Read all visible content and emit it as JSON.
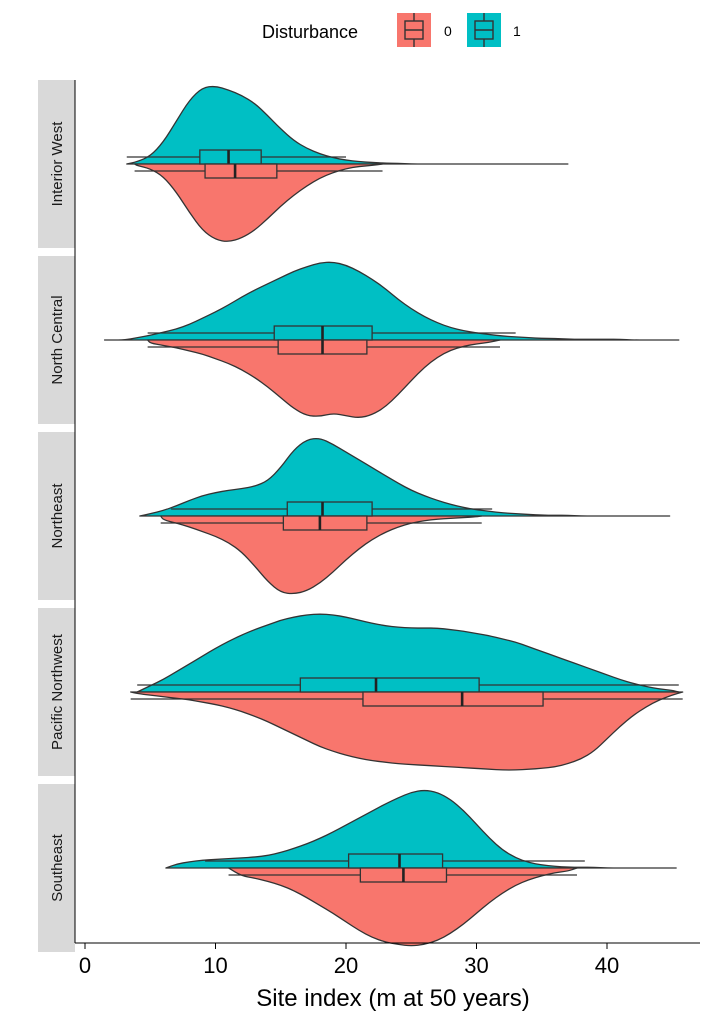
{
  "chart_data": {
    "type": "split-violin-boxplot",
    "xlabel": "Site index (m at 50 years)",
    "xlim": [
      -0.5,
      46
    ],
    "xticks": [
      0,
      10,
      20,
      30,
      40
    ],
    "legend": {
      "title": "Disturbance",
      "position": "top",
      "entries": [
        {
          "label": "0",
          "color": "#F8766D",
          "side": "bottom"
        },
        {
          "label": "1",
          "color": "#00BFC4",
          "side": "top"
        }
      ]
    },
    "density_grid": [
      3,
      4,
      5,
      6,
      7,
      8,
      9,
      10,
      11,
      12,
      13,
      14,
      15,
      16,
      17,
      18,
      19,
      20,
      21,
      22,
      23,
      24,
      25,
      26,
      27,
      28,
      29,
      30,
      31,
      32,
      33,
      34,
      35,
      36,
      37,
      38,
      39,
      40,
      41,
      42,
      43,
      44,
      45,
      46
    ],
    "panels": [
      {
        "region": "Interior West",
        "groups": {
          "1": {
            "min": 3.2,
            "q1": 8.8,
            "median": 11.0,
            "q3": 13.5,
            "max": 37.0,
            "whisker_low": 3.2,
            "whisker_high": 20.0,
            "density": [
              0.01,
              0.03,
              0.1,
              0.28,
              0.55,
              0.82,
              0.98,
              1.0,
              0.95,
              0.88,
              0.78,
              0.62,
              0.45,
              0.3,
              0.2,
              0.13,
              0.08,
              0.05,
              0.03,
              0.02,
              0.01,
              0.01,
              0,
              0,
              0,
              0,
              0,
              0,
              0,
              0,
              0,
              0,
              0,
              0,
              0,
              0,
              0,
              0,
              0,
              0,
              0,
              0,
              0,
              0
            ]
          },
          "0": {
            "min": 3.8,
            "q1": 9.2,
            "median": 11.5,
            "q3": 14.7,
            "max": 22.8,
            "whisker_low": 3.8,
            "whisker_high": 22.8,
            "density": [
              0.01,
              0.02,
              0.06,
              0.16,
              0.36,
              0.62,
              0.85,
              0.97,
              1.0,
              0.95,
              0.85,
              0.7,
              0.54,
              0.4,
              0.28,
              0.18,
              0.11,
              0.06,
              0.03,
              0.02,
              0.01,
              0,
              0,
              0,
              0,
              0,
              0,
              0,
              0,
              0,
              0,
              0,
              0,
              0,
              0,
              0,
              0,
              0,
              0,
              0,
              0,
              0,
              0,
              0
            ]
          }
        }
      },
      {
        "region": "North Central",
        "groups": {
          "1": {
            "min": 1.5,
            "q1": 14.5,
            "median": 18.2,
            "q3": 22.0,
            "max": 45.5,
            "whisker_low": 4.8,
            "whisker_high": 33.0,
            "density": [
              0,
              0.03,
              0.06,
              0.1,
              0.14,
              0.2,
              0.28,
              0.36,
              0.45,
              0.55,
              0.64,
              0.72,
              0.8,
              0.88,
              0.94,
              0.99,
              1.0,
              0.96,
              0.88,
              0.78,
              0.66,
              0.52,
              0.4,
              0.3,
              0.22,
              0.16,
              0.12,
              0.09,
              0.07,
              0.05,
              0.04,
              0.03,
              0.02,
              0.02,
              0.01,
              0.01,
              0.01,
              0.01,
              0.01,
              0,
              0,
              0,
              0,
              0
            ]
          },
          "0": {
            "min": 4.8,
            "q1": 14.8,
            "median": 18.2,
            "q3": 21.6,
            "max": 31.8,
            "whisker_low": 4.8,
            "whisker_high": 31.8,
            "density": [
              0,
              0.02,
              0.04,
              0.07,
              0.1,
              0.14,
              0.18,
              0.24,
              0.3,
              0.38,
              0.48,
              0.6,
              0.74,
              0.88,
              0.97,
              0.98,
              0.94,
              0.97,
              1.0,
              0.96,
              0.86,
              0.7,
              0.52,
              0.35,
              0.22,
              0.13,
              0.08,
              0.05,
              0.03,
              0.02,
              0.01,
              0,
              0,
              0,
              0,
              0,
              0,
              0,
              0,
              0,
              0,
              0,
              0,
              0
            ]
          }
        }
      },
      {
        "region": "Northeast",
        "groups": {
          "1": {
            "min": 4.2,
            "q1": 15.5,
            "median": 18.2,
            "q3": 22.0,
            "max": 44.8,
            "whisker_low": 6.6,
            "whisker_high": 31.2,
            "density": [
              0,
              0.01,
              0.03,
              0.07,
              0.13,
              0.2,
              0.26,
              0.3,
              0.33,
              0.35,
              0.38,
              0.45,
              0.62,
              0.85,
              0.98,
              1.0,
              0.92,
              0.82,
              0.72,
              0.62,
              0.52,
              0.42,
              0.33,
              0.26,
              0.2,
              0.15,
              0.11,
              0.08,
              0.06,
              0.04,
              0.03,
              0.02,
              0.01,
              0.01,
              0.01,
              0,
              0,
              0,
              0,
              0,
              0,
              0,
              0,
              0
            ]
          },
          "0": {
            "min": 5.8,
            "q1": 15.2,
            "median": 18.0,
            "q3": 21.6,
            "max": 30.4,
            "whisker_low": 5.8,
            "whisker_high": 30.4,
            "density": [
              0,
              0.01,
              0.02,
              0.05,
              0.09,
              0.14,
              0.2,
              0.26,
              0.34,
              0.46,
              0.64,
              0.84,
              0.98,
              1.0,
              0.96,
              0.86,
              0.72,
              0.56,
              0.42,
              0.3,
              0.21,
              0.14,
              0.09,
              0.06,
              0.04,
              0.03,
              0.02,
              0.01,
              0.01,
              0,
              0,
              0,
              0,
              0,
              0,
              0,
              0,
              0,
              0,
              0,
              0,
              0,
              0,
              0
            ]
          }
        }
      },
      {
        "region": "Pacific Northwest",
        "groups": {
          "1": {
            "min": 4.0,
            "q1": 16.5,
            "median": 22.3,
            "q3": 30.2,
            "max": 45.5,
            "whisker_low": 4.0,
            "whisker_high": 45.5,
            "density": [
              0,
              0.02,
              0.08,
              0.16,
              0.26,
              0.36,
              0.46,
              0.56,
              0.65,
              0.73,
              0.8,
              0.86,
              0.92,
              0.96,
              0.99,
              1.0,
              0.99,
              0.96,
              0.92,
              0.88,
              0.85,
              0.83,
              0.82,
              0.82,
              0.82,
              0.8,
              0.78,
              0.75,
              0.72,
              0.68,
              0.64,
              0.58,
              0.52,
              0.46,
              0.4,
              0.34,
              0.28,
              0.22,
              0.16,
              0.11,
              0.07,
              0.04,
              0.02,
              0
            ]
          },
          "0": {
            "min": 3.5,
            "q1": 21.3,
            "median": 28.9,
            "q3": 35.1,
            "max": 45.8,
            "whisker_low": 3.5,
            "whisker_high": 45.8,
            "density": [
              0,
              0.02,
              0.04,
              0.06,
              0.08,
              0.1,
              0.13,
              0.16,
              0.2,
              0.25,
              0.31,
              0.38,
              0.46,
              0.54,
              0.62,
              0.7,
              0.76,
              0.81,
              0.85,
              0.88,
              0.9,
              0.92,
              0.93,
              0.94,
              0.95,
              0.96,
              0.97,
              0.98,
              0.99,
              1.0,
              1.0,
              0.99,
              0.98,
              0.96,
              0.92,
              0.86,
              0.76,
              0.6,
              0.44,
              0.3,
              0.19,
              0.1,
              0.04,
              0
            ]
          }
        }
      },
      {
        "region": "Southeast",
        "groups": {
          "1": {
            "min": 6.2,
            "q1": 20.2,
            "median": 24.1,
            "q3": 27.4,
            "max": 45.3,
            "whisker_low": 9.2,
            "whisker_high": 38.3,
            "density": [
              0,
              0,
              0,
              0.02,
              0.05,
              0.08,
              0.1,
              0.11,
              0.12,
              0.13,
              0.14,
              0.16,
              0.2,
              0.25,
              0.31,
              0.38,
              0.46,
              0.55,
              0.64,
              0.73,
              0.82,
              0.9,
              0.97,
              1.0,
              0.97,
              0.88,
              0.74,
              0.56,
              0.38,
              0.23,
              0.13,
              0.07,
              0.04,
              0.02,
              0.01,
              0.01,
              0.01,
              0,
              0,
              0,
              0,
              0,
              0,
              0
            ]
          },
          "0": {
            "min": 11.0,
            "q1": 21.1,
            "median": 24.4,
            "q3": 27.7,
            "max": 37.7,
            "whisker_low": 11.0,
            "whisker_high": 37.7,
            "density": [
              0,
              0,
              0,
              0,
              0.01,
              0.02,
              0.03,
              0.05,
              0.07,
              0.1,
              0.13,
              0.17,
              0.22,
              0.29,
              0.38,
              0.48,
              0.58,
              0.69,
              0.8,
              0.89,
              0.95,
              0.98,
              1.0,
              0.98,
              0.93,
              0.84,
              0.72,
              0.58,
              0.44,
              0.32,
              0.22,
              0.15,
              0.1,
              0.06,
              0.04,
              0.02,
              0.01,
              0,
              0,
              0,
              0,
              0,
              0,
              0
            ]
          }
        }
      }
    ]
  }
}
